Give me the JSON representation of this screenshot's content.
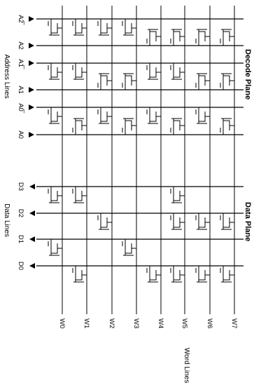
{
  "decode_plane_label": "Decode Plane",
  "data_plane_label": "Data Plane",
  "address_lines_label": "Address Lines",
  "data_lines_label": "Data Lines",
  "word_lines_label": "Word Lines",
  "address_lines": [
    {
      "name": "A2̅",
      "bits": [
        1,
        1,
        1,
        1,
        0,
        0,
        0,
        0
      ]
    },
    {
      "name": "A2",
      "bits": [
        0,
        0,
        0,
        0,
        1,
        1,
        1,
        1
      ]
    },
    {
      "name": "A1̅",
      "bits": [
        1,
        1,
        0,
        0,
        1,
        1,
        0,
        0
      ]
    },
    {
      "name": "A1",
      "bits": [
        0,
        0,
        1,
        1,
        0,
        0,
        1,
        1
      ]
    },
    {
      "name": "A0̅",
      "bits": [
        1,
        0,
        1,
        0,
        1,
        0,
        1,
        0
      ]
    },
    {
      "name": "A0",
      "bits": [
        0,
        1,
        0,
        1,
        0,
        1,
        0,
        1
      ]
    }
  ],
  "data_lines": [
    {
      "name": "D3",
      "bits": [
        1,
        1,
        0,
        0,
        0,
        1,
        0,
        0
      ]
    },
    {
      "name": "D2",
      "bits": [
        0,
        0,
        1,
        0,
        0,
        1,
        1,
        1
      ]
    },
    {
      "name": "D1",
      "bits": [
        1,
        0,
        0,
        1,
        0,
        0,
        0,
        0
      ]
    },
    {
      "name": "D0",
      "bits": [
        0,
        1,
        0,
        0,
        1,
        1,
        1,
        1
      ]
    }
  ],
  "word_lines": [
    "W0",
    "W1",
    "W2",
    "W3",
    "W4",
    "W5",
    "W6",
    "W7"
  ]
}
